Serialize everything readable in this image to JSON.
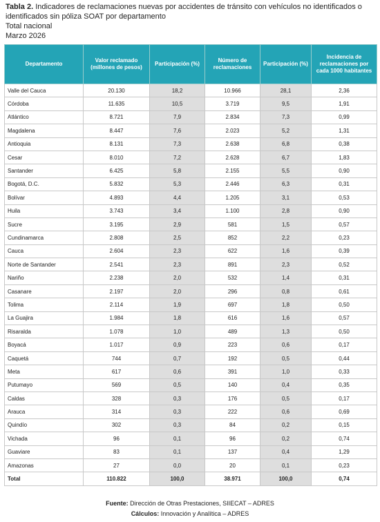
{
  "title": {
    "label": "Tabla 2.",
    "text": "Indicadores de reclamaciones nuevas por accidentes de tránsito con vehículos no identificados o identificados sin póliza SOAT por departamento",
    "subtitle1": "Total nacional",
    "subtitle2": "Marzo 2026"
  },
  "table": {
    "header": [
      "Departamento",
      "Valor reclamado (millones de pesos)",
      "Participación (%)",
      "Número de reclamaciones",
      "Participación (%)",
      "Incidencia de reclamaciones por cada 1000 habitantes"
    ],
    "rows": [
      [
        "Valle del Cauca",
        "20.130",
        "18,2",
        "10.966",
        "28,1",
        "2,36"
      ],
      [
        "Córdoba",
        "11.635",
        "10,5",
        "3.719",
        "9,5",
        "1,91"
      ],
      [
        "Atlántico",
        "8.721",
        "7,9",
        "2.834",
        "7,3",
        "0,99"
      ],
      [
        "Magdalena",
        "8.447",
        "7,6",
        "2.023",
        "5,2",
        "1,31"
      ],
      [
        "Antioquia",
        "8.131",
        "7,3",
        "2.638",
        "6,8",
        "0,38"
      ],
      [
        "Cesar",
        "8.010",
        "7,2",
        "2.628",
        "6,7",
        "1,83"
      ],
      [
        "Santander",
        "6.425",
        "5,8",
        "2.155",
        "5,5",
        "0,90"
      ],
      [
        "Bogotá, D.C.",
        "5.832",
        "5,3",
        "2.446",
        "6,3",
        "0,31"
      ],
      [
        "Bolívar",
        "4.893",
        "4,4",
        "1.205",
        "3,1",
        "0,53"
      ],
      [
        "Huila",
        "3.743",
        "3,4",
        "1.100",
        "2,8",
        "0,90"
      ],
      [
        "Sucre",
        "3.195",
        "2,9",
        "581",
        "1,5",
        "0,57"
      ],
      [
        "Cundinamarca",
        "2.808",
        "2,5",
        "852",
        "2,2",
        "0,23"
      ],
      [
        "Cauca",
        "2.604",
        "2,3",
        "622",
        "1,6",
        "0,39"
      ],
      [
        "Norte de Santander",
        "2.541",
        "2,3",
        "891",
        "2,3",
        "0,52"
      ],
      [
        "Nariño",
        "2.238",
        "2,0",
        "532",
        "1,4",
        "0,31"
      ],
      [
        "Casanare",
        "2.197",
        "2,0",
        "296",
        "0,8",
        "0,61"
      ],
      [
        "Tolima",
        "2.114",
        "1,9",
        "697",
        "1,8",
        "0,50"
      ],
      [
        "La Guajira",
        "1.984",
        "1,8",
        "616",
        "1,6",
        "0,57"
      ],
      [
        "Risaralda",
        "1.078",
        "1,0",
        "489",
        "1,3",
        "0,50"
      ],
      [
        "Boyacá",
        "1.017",
        "0,9",
        "223",
        "0,6",
        "0,17"
      ],
      [
        "Caquetá",
        "744",
        "0,7",
        "192",
        "0,5",
        "0,44"
      ],
      [
        "Meta",
        "617",
        "0,6",
        "391",
        "1,0",
        "0,33"
      ],
      [
        "Putumayo",
        "569",
        "0,5",
        "140",
        "0,4",
        "0,35"
      ],
      [
        "Caldas",
        "328",
        "0,3",
        "176",
        "0,5",
        "0,17"
      ],
      [
        "Arauca",
        "314",
        "0,3",
        "222",
        "0,6",
        "0,69"
      ],
      [
        "Quindío",
        "302",
        "0,3",
        "84",
        "0,2",
        "0,15"
      ],
      [
        "Vichada",
        "96",
        "0,1",
        "96",
        "0,2",
        "0,74"
      ],
      [
        "Guaviare",
        "83",
        "0,1",
        "137",
        "0,4",
        "1,29"
      ],
      [
        "Amazonas",
        "27",
        "0,0",
        "20",
        "0,1",
        "0,23"
      ]
    ],
    "total": [
      "Total",
      "110.822",
      "100,0",
      "38.971",
      "100,0",
      "0,74"
    ]
  },
  "footer": {
    "source_label": "Fuente:",
    "source_text": "Dirección de Otras Prestaciones, SIIECAT – ADRES",
    "calc_label": "Cálculos:",
    "calc_text": "Innovación y Analítica – ADRES"
  }
}
